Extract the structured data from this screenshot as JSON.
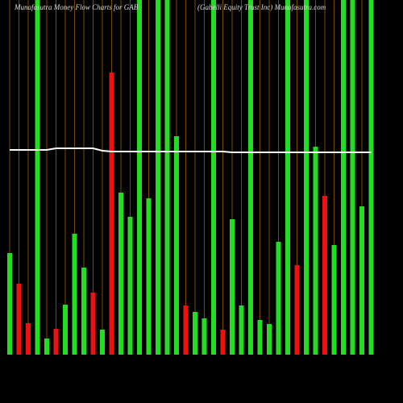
{
  "chart_data": {
    "type": "bar",
    "title": "Munafasutra  Money Flow  Charts for GAB",
    "subtitle": "(Gabelli  Equity Trust Inc) Munafasutra.com",
    "categories": [
      null,
      null,
      null,
      null,
      null,
      null,
      null,
      null,
      null,
      null,
      null,
      null,
      null,
      null,
      null,
      null,
      null,
      null,
      null,
      null,
      null,
      null,
      null,
      null,
      null,
      null,
      null,
      null,
      null,
      null,
      null,
      null,
      null,
      null,
      null,
      null,
      null,
      null,
      null,
      null
    ],
    "values": [
      126,
      88,
      39,
      440,
      20,
      32,
      62,
      150,
      108,
      77,
      31,
      350,
      201,
      171,
      440,
      194,
      440,
      440,
      271,
      61,
      53,
      45,
      440,
      31,
      168,
      61,
      440,
      43,
      38,
      140,
      440,
      111,
      440,
      258,
      197,
      136,
      440,
      440,
      184,
      440
    ],
    "colors": [
      "#22dd22",
      "#ee1111",
      "#ee1111",
      "#22dd22",
      "#22dd22",
      "#ee1111",
      "#22dd22",
      "#22dd22",
      "#22dd22",
      "#ee1111",
      "#22dd22",
      "#ee1111",
      "#22dd22",
      "#22dd22",
      "#22dd22",
      "#22dd22",
      "#22dd22",
      "#22dd22",
      "#22dd22",
      "#ee1111",
      "#22dd22",
      "#22dd22",
      "#22dd22",
      "#ee1111",
      "#22dd22",
      "#22dd22",
      "#22dd22",
      "#22dd22",
      "#22dd22",
      "#22dd22",
      "#22dd22",
      "#ee1111",
      "#22dd22",
      "#22dd22",
      "#ee1111",
      "#22dd22",
      "#22dd22",
      "#22dd22",
      "#22dd22",
      "#22dd22"
    ],
    "line_values": [
      254,
      254,
      254,
      254,
      254,
      256,
      256,
      256,
      256,
      256,
      253,
      252,
      252,
      252,
      252,
      252,
      252,
      252,
      252,
      252,
      252,
      252,
      252,
      252,
      251,
      251,
      251,
      251,
      251,
      251,
      251,
      251,
      251,
      251,
      251,
      251,
      251,
      251,
      251,
      251
    ],
    "line_color": "#ffffff",
    "grid_color": "#7a4a00",
    "ylim": [
      0,
      440
    ]
  }
}
